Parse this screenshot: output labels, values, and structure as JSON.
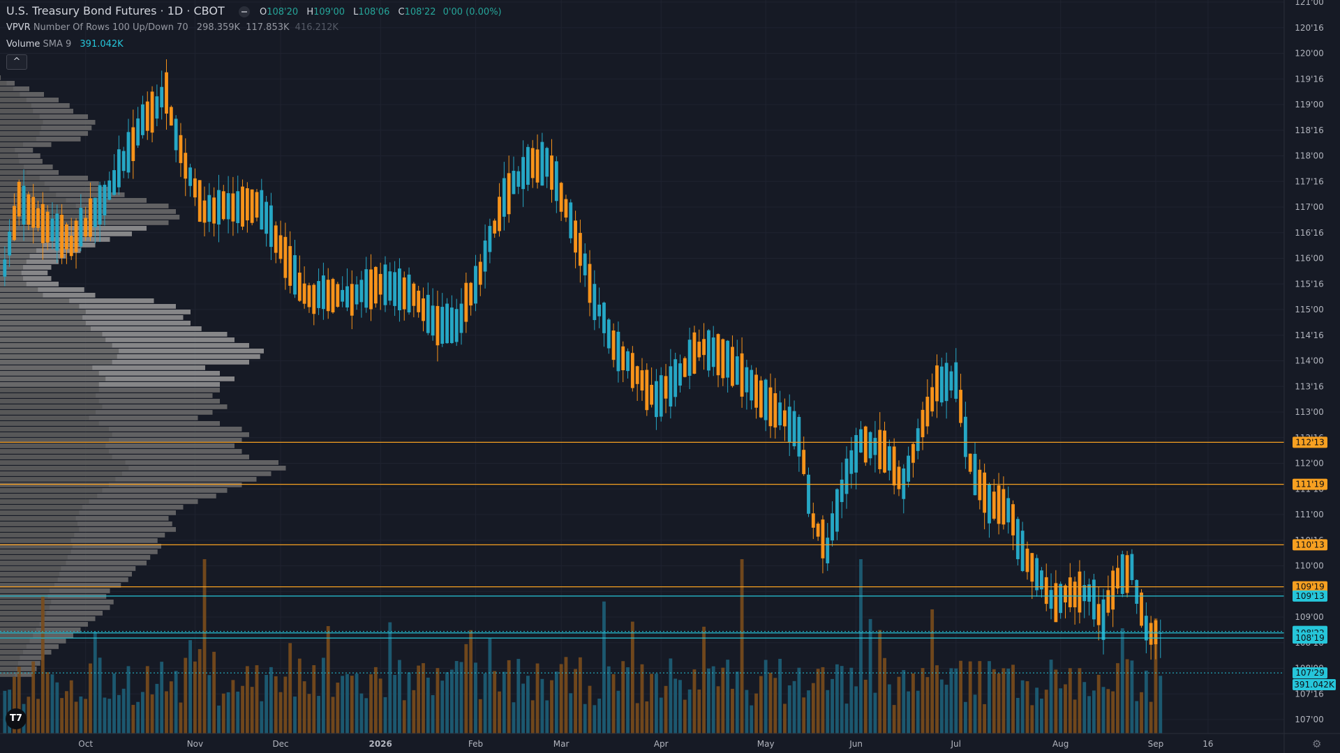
{
  "header": {
    "symbol_title": "U.S. Treasury Bond Futures · 1D · CBOT",
    "ohlc": [
      {
        "key": "O",
        "value": "108'20"
      },
      {
        "key": "H",
        "value": "109'00"
      },
      {
        "key": "L",
        "value": "108'06"
      },
      {
        "key": "C",
        "value": "108'22"
      },
      {
        "key": "",
        "value": "0'00 (0.00%)"
      }
    ]
  },
  "indicators": {
    "vpvr": {
      "name": "VPVR",
      "params": "Number Of Rows 100 Up/Down 70",
      "values": [
        "298.359K",
        "117.853K",
        "416.212K"
      ]
    },
    "volume": {
      "name": "Volume",
      "params": "SMA 9",
      "value": "391.042K"
    }
  },
  "collapse_label": "^",
  "logo_text": "T7",
  "colors": {
    "background": "#161a25",
    "up": "#26a7c5",
    "down": "#f7931a",
    "volume_up": "#1d5f78",
    "volume_down": "#7a4c1c",
    "profile": "#8c8c8c",
    "hline_orange": "#f7a021",
    "hline_cyan": "#26c6da"
  },
  "chart_data": {
    "type": "candlestick",
    "y_range": [
      106.75,
      121.0
    ],
    "y_ticks": [
      {
        "label": "121'00",
        "v": 121.0
      },
      {
        "label": "120'16",
        "v": 120.5
      },
      {
        "label": "120'00",
        "v": 120.0
      },
      {
        "label": "119'16",
        "v": 119.5
      },
      {
        "label": "119'00",
        "v": 119.0
      },
      {
        "label": "118'16",
        "v": 118.5
      },
      {
        "label": "118'00",
        "v": 118.0
      },
      {
        "label": "117'16",
        "v": 117.5
      },
      {
        "label": "117'00",
        "v": 117.0
      },
      {
        "label": "116'16",
        "v": 116.5
      },
      {
        "label": "116'00",
        "v": 116.0
      },
      {
        "label": "115'16",
        "v": 115.5
      },
      {
        "label": "115'00",
        "v": 115.0
      },
      {
        "label": "114'16",
        "v": 114.5
      },
      {
        "label": "114'00",
        "v": 114.0
      },
      {
        "label": "113'16",
        "v": 113.5
      },
      {
        "label": "113'00",
        "v": 113.0
      },
      {
        "label": "112'16",
        "v": 112.5
      },
      {
        "label": "112'00",
        "v": 112.0
      },
      {
        "label": "111'16",
        "v": 111.5
      },
      {
        "label": "111'00",
        "v": 111.0
      },
      {
        "label": "110'16",
        "v": 110.5
      },
      {
        "label": "110'00",
        "v": 110.0
      },
      {
        "label": "109'16",
        "v": 109.5
      },
      {
        "label": "109'00",
        "v": 109.0
      },
      {
        "label": "108'16",
        "v": 108.5
      },
      {
        "label": "108'00",
        "v": 108.0
      },
      {
        "label": "107'16",
        "v": 107.5
      },
      {
        "label": "107'00",
        "v": 107.0
      }
    ],
    "x_labels": [
      {
        "label": "Oct",
        "i": 17
      },
      {
        "label": "Nov",
        "i": 40
      },
      {
        "label": "Dec",
        "i": 58
      },
      {
        "label": "2026",
        "i": 79
      },
      {
        "label": "Feb",
        "i": 99
      },
      {
        "label": "Mar",
        "i": 117
      },
      {
        "label": "Apr",
        "i": 138
      },
      {
        "label": "May",
        "i": 160
      },
      {
        "label": "Jun",
        "i": 179
      },
      {
        "label": "Jul",
        "i": 200
      },
      {
        "label": "Aug",
        "i": 222
      },
      {
        "label": "Sep",
        "i": 242
      },
      {
        "label": "16",
        "i": 253
      }
    ],
    "x_index_range": [
      -1,
      258
    ],
    "horizontal_lines": [
      {
        "label": "112'13",
        "v": 112.41,
        "color": "orange",
        "style": "solid"
      },
      {
        "label": "111'19",
        "v": 111.59,
        "color": "orange",
        "style": "solid"
      },
      {
        "label": "110'13",
        "v": 110.41,
        "color": "orange",
        "style": "solid"
      },
      {
        "label": "109'19",
        "v": 109.59,
        "color": "orange",
        "style": "solid"
      },
      {
        "label": "109'13",
        "v": 109.41,
        "color": "cyan",
        "style": "solid"
      },
      {
        "label": "108'23",
        "v": 108.72,
        "color": "cyan",
        "style": "dotted"
      },
      {
        "label": "108'22",
        "v": 108.69,
        "color": "cyan",
        "style": "solid"
      },
      {
        "label": "108'19",
        "v": 108.59,
        "color": "cyan",
        "style": "solid"
      },
      {
        "label": "107'29",
        "v": 107.91,
        "color": "cyan",
        "style": "dotted"
      }
    ],
    "volume_label": "391.042K",
    "volume_pane": {
      "top_y": 800,
      "bottom_y": 1052
    },
    "candles_anchor": [
      [
        0,
        115.3,
        116.4
      ],
      [
        3,
        116.6,
        117.6
      ],
      [
        8,
        116.4,
        117.0
      ],
      [
        14,
        116.0,
        116.6
      ],
      [
        22,
        116.6,
        118.0
      ],
      [
        29,
        117.9,
        119.4
      ],
      [
        34,
        119.3,
        119.1
      ],
      [
        37,
        118.6,
        117.6
      ],
      [
        42,
        117.4,
        116.4
      ],
      [
        48,
        116.8,
        117.2
      ],
      [
        54,
        116.5,
        117.5
      ],
      [
        58,
        116.4,
        116.0
      ],
      [
        63,
        115.7,
        114.8
      ],
      [
        69,
        115.0,
        115.6
      ],
      [
        73,
        115.5,
        115.0
      ],
      [
        80,
        115.2,
        115.8
      ],
      [
        86,
        115.5,
        115.1
      ],
      [
        90,
        114.5,
        115.0
      ],
      [
        95,
        114.5,
        114.8
      ],
      [
        100,
        115.2,
        116.3
      ],
      [
        105,
        116.7,
        117.7
      ],
      [
        110,
        117.7,
        117.9
      ],
      [
        114,
        117.8,
        118.0
      ],
      [
        117,
        117.4,
        117.1
      ],
      [
        121,
        116.4,
        115.9
      ],
      [
        124,
        115.5,
        114.9
      ],
      [
        128,
        114.1,
        114.6
      ],
      [
        133,
        114.8,
        112.6
      ],
      [
        137,
        113.1,
        113.4
      ],
      [
        141,
        113.8,
        113.5
      ],
      [
        146,
        114.0,
        114.5
      ],
      [
        151,
        114.5,
        113.7
      ],
      [
        155,
        113.8,
        113.7
      ],
      [
        160,
        113.0,
        113.4
      ],
      [
        163,
        113.5,
        112.4
      ],
      [
        167,
        112.9,
        112.2
      ],
      [
        170,
        112.0,
        109.7
      ],
      [
        173,
        110.0,
        110.7
      ],
      [
        176,
        111.0,
        112.0
      ],
      [
        180,
        112.3,
        112.6
      ],
      [
        185,
        112.5,
        111.9
      ],
      [
        189,
        111.7,
        111.5
      ],
      [
        193,
        112.4,
        113.1
      ],
      [
        196,
        113.0,
        114.1
      ],
      [
        200,
        114.0,
        113.2
      ],
      [
        203,
        112.4,
        111.6
      ],
      [
        207,
        111.5,
        110.9
      ],
      [
        211,
        111.3,
        110.9
      ],
      [
        214,
        110.5,
        110.1
      ],
      [
        218,
        109.5,
        109.8
      ],
      [
        221,
        109.8,
        108.7
      ],
      [
        224,
        109.2,
        109.8
      ],
      [
        228,
        109.8,
        109.1
      ],
      [
        231,
        109.0,
        108.9
      ],
      [
        234,
        109.5,
        110.1
      ],
      [
        237,
        110.2,
        109.7
      ],
      [
        240,
        109.0,
        108.5
      ],
      [
        243,
        108.5,
        108.8
      ]
    ]
  }
}
